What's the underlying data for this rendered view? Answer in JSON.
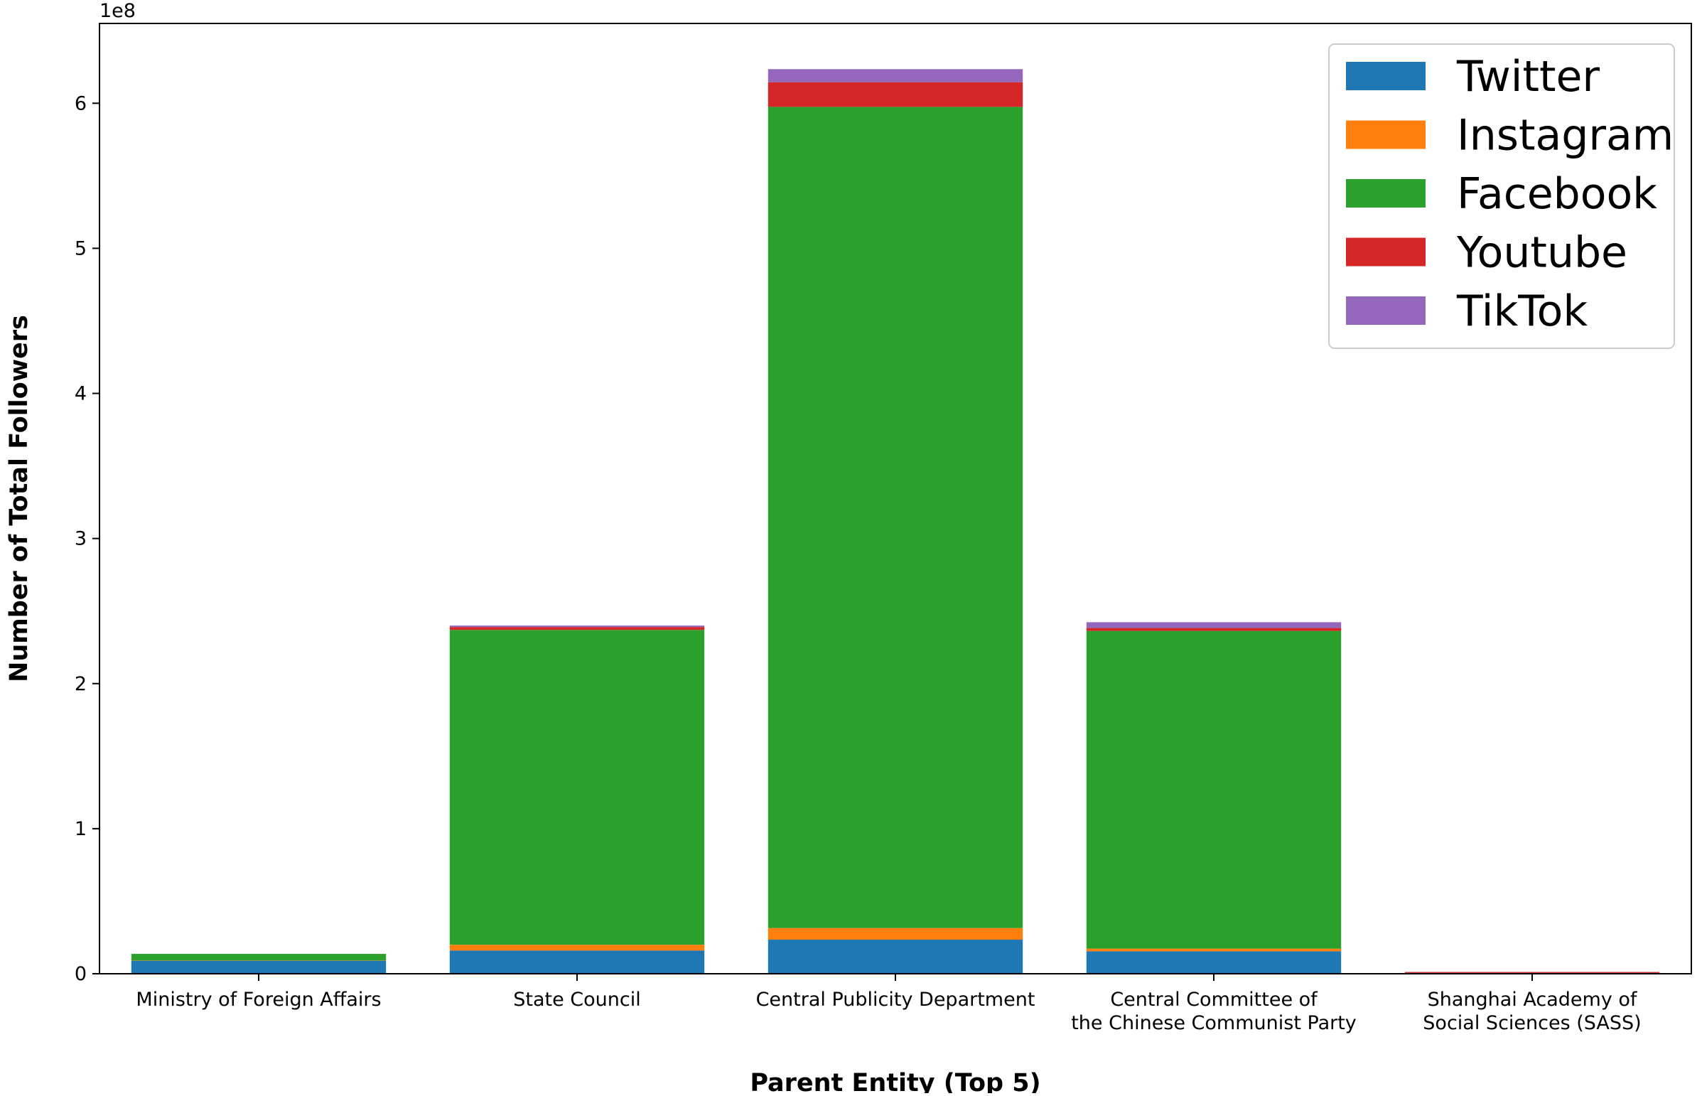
{
  "chart_data": {
    "type": "bar",
    "stacked": true,
    "xlabel": "Parent Entity (Top 5)",
    "ylabel": "Number of Total Followers",
    "y_offset_label": "1e8",
    "y_scale": 100000000,
    "ylim": [
      0,
      6.55
    ],
    "yticks": [
      0,
      1,
      2,
      3,
      4,
      5,
      6
    ],
    "grid": false,
    "legend_position": "top-right",
    "categories": [
      [
        "Ministry of Foreign Affairs"
      ],
      [
        "State Council"
      ],
      [
        "Central Publicity Department"
      ],
      [
        "Central Committee of",
        "the Chinese Communist Party"
      ],
      [
        "Shanghai Academy of",
        "Social Sciences (SASS)"
      ]
    ],
    "series": [
      {
        "name": "Twitter",
        "color": "#1f77b4",
        "values": [
          0.09,
          0.16,
          0.235,
          0.155,
          0.0
        ]
      },
      {
        "name": "Instagram",
        "color": "#ff7f0e",
        "values": [
          0.002,
          0.04,
          0.08,
          0.018,
          0.0
        ]
      },
      {
        "name": "Facebook",
        "color": "#2ca02c",
        "values": [
          0.045,
          2.17,
          5.66,
          2.19,
          0.0
        ]
      },
      {
        "name": "Youtube",
        "color": "#d62728",
        "values": [
          0.0,
          0.02,
          0.17,
          0.02,
          0.012
        ]
      },
      {
        "name": "TikTok",
        "color": "#9467bd",
        "values": [
          0.0,
          0.01,
          0.09,
          0.04,
          0.0
        ]
      }
    ]
  }
}
